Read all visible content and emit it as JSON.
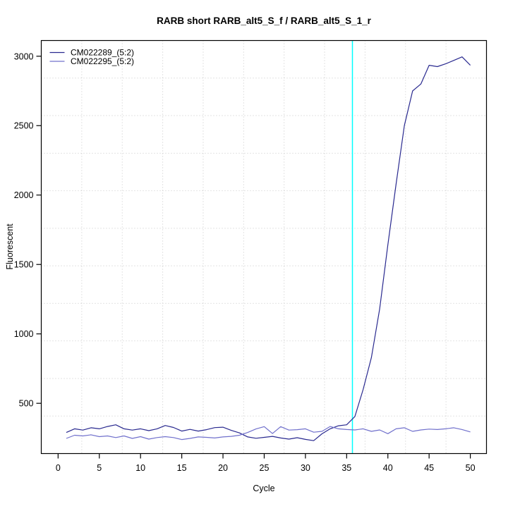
{
  "figure": {
    "background": "#FFFFFF"
  },
  "chart_data": {
    "type": "line",
    "title": "RARB short RARB_alt5_S_f / RARB_alt5_S_1_r",
    "xlabel": "Cycle",
    "ylabel": "Fluorescent",
    "x": [
      1,
      2,
      3,
      4,
      5,
      6,
      7,
      8,
      9,
      10,
      11,
      12,
      13,
      14,
      15,
      16,
      17,
      18,
      19,
      20,
      21,
      22,
      23,
      24,
      25,
      26,
      27,
      28,
      29,
      30,
      31,
      32,
      33,
      34,
      35,
      36,
      37,
      38,
      39,
      40,
      41,
      42,
      43,
      44,
      45,
      46,
      47,
      48,
      49,
      50
    ],
    "series": [
      {
        "name": "CM022289_(5:2)",
        "color": "#29298F",
        "values": [
          290,
          316,
          307,
          324,
          316,
          333,
          345,
          316,
          307,
          316,
          303,
          316,
          340,
          326,
          300,
          312,
          300,
          310,
          325,
          328,
          305,
          287,
          258,
          248,
          255,
          262,
          250,
          242,
          252,
          240,
          231,
          280,
          316,
          338,
          345,
          405,
          600,
          830,
          1180,
          1640,
          2080,
          2500,
          2750,
          2800,
          2935,
          2925,
          2945,
          2970,
          2995,
          2935
        ]
      },
      {
        "name": "CM022295_(5:2)",
        "color": "#7070CC",
        "values": [
          247,
          270,
          265,
          273,
          260,
          265,
          253,
          265,
          247,
          260,
          242,
          253,
          260,
          253,
          239,
          247,
          258,
          255,
          250,
          258,
          262,
          270,
          290,
          315,
          332,
          282,
          332,
          307,
          310,
          316,
          292,
          298,
          333,
          316,
          311,
          308,
          316,
          298,
          308,
          281,
          316,
          324,
          298,
          308,
          314,
          311,
          316,
          324,
          311,
          294
        ]
      }
    ],
    "threshold_line": {
      "cycle": 35.7,
      "color": "#00FFFF"
    },
    "x_ticks": [
      0,
      5,
      10,
      15,
      20,
      25,
      30,
      35,
      40,
      45,
      50
    ],
    "y_ticks": [
      500,
      1000,
      1500,
      2000,
      2500,
      3000
    ],
    "xlim": [
      -2.04,
      51.96
    ],
    "ylim": [
      138,
      3113
    ],
    "grid": {
      "nx": 11,
      "ny": 11,
      "color": "#C8C8C8",
      "style": "dotted"
    },
    "legend": {
      "position": "top-left"
    },
    "axis_color": "#000000"
  }
}
